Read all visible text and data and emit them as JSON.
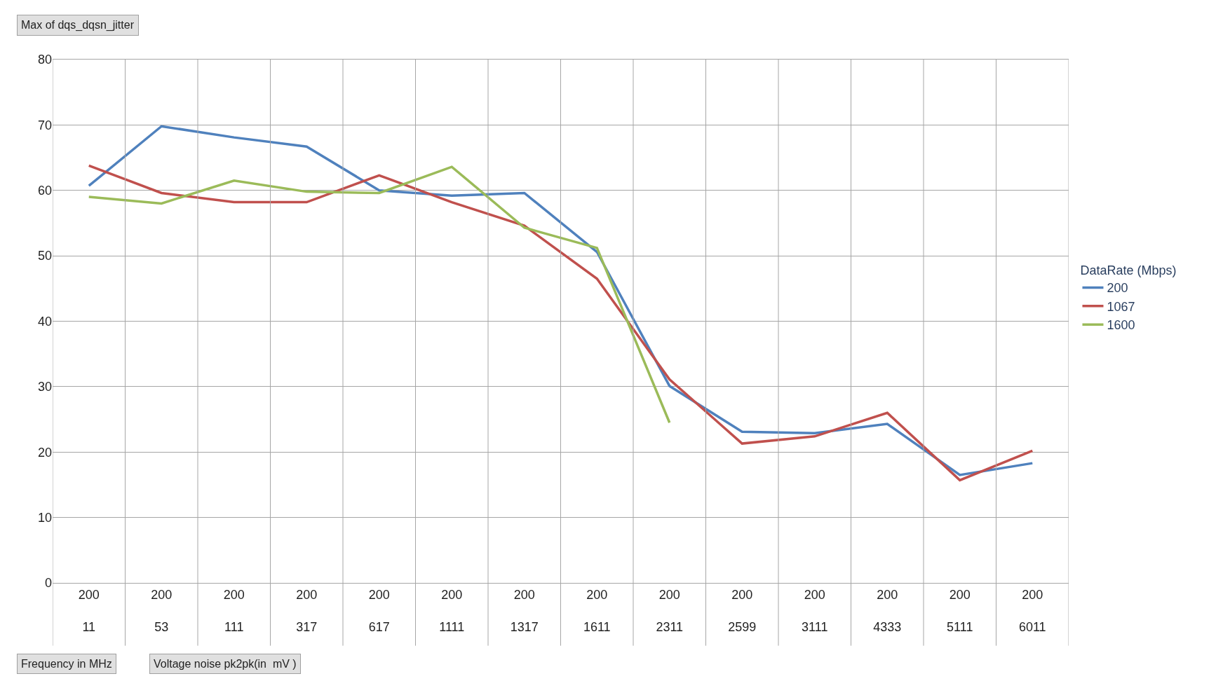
{
  "chart_data": {
    "type": "line",
    "title": "Max of dqs_dqsn_jitter",
    "legend_title": "DataRate (Mbps)",
    "annotations": [
      "Frequency in MHz",
      "Voltage noise pk2pk(in  mV )"
    ],
    "categories": [
      "200\n11",
      "200\n53",
      "200\n111",
      "200\n317",
      "200\n617",
      "200\n1111",
      "200\n1317",
      "200\n1611",
      "200\n2311",
      "200\n2599",
      "200\n3111",
      "200\n4333",
      "200\n5111",
      "200\n6011"
    ],
    "series": [
      {
        "name": "200",
        "color": "#4f81bd",
        "values": [
          60.7,
          69.8,
          68.1,
          66.7,
          60.0,
          59.2,
          59.6,
          50.6,
          30.1,
          23.1,
          22.9,
          24.3,
          16.5,
          18.3
        ]
      },
      {
        "name": "1067",
        "color": "#c0504d",
        "values": [
          63.8,
          59.6,
          58.2,
          58.2,
          62.3,
          58.2,
          54.6,
          46.5,
          31.1,
          21.3,
          22.4,
          26.0,
          15.7,
          20.2
        ]
      },
      {
        "name": "1600",
        "color": "#9bbb59",
        "values": [
          59.0,
          58.0,
          61.5,
          59.8,
          59.6,
          63.6,
          54.3,
          51.2,
          24.5,
          null,
          null,
          null,
          null,
          null
        ]
      }
    ],
    "ylim": [
      0,
      80
    ],
    "yticks": [
      0,
      10,
      20,
      30,
      40,
      50,
      60,
      70,
      80
    ],
    "grid": true,
    "legend": "right",
    "marker": "none",
    "line_style": "solid"
  }
}
